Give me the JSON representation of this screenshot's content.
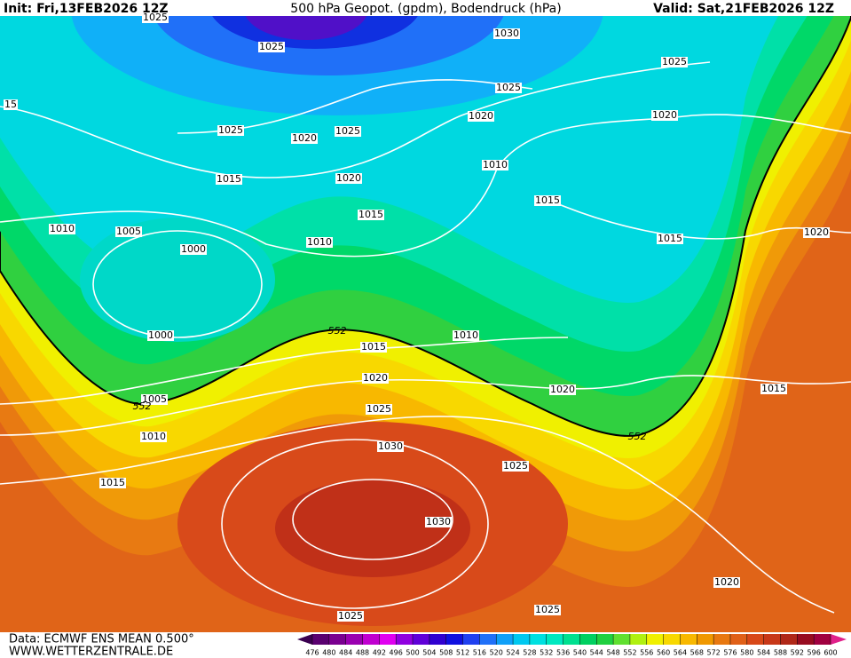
{
  "header": {
    "init": "Init: Fri,13FEB2026 12Z",
    "title": "500 hPa Geopot. (gpdm), Bodendruck (hPa)",
    "valid": "Valid: Sat,21FEB2026 12Z"
  },
  "isobar_labels": [
    "1025",
    "1025",
    "1030",
    "1025",
    "1025",
    "15",
    "1020",
    "1020",
    "1025",
    "1025",
    "1020",
    "1010",
    "1015",
    "1020",
    "1015",
    "1015",
    "1010",
    "1005",
    "1020",
    "1010",
    "1015",
    "1000",
    "1010",
    "1000",
    "1015",
    "1020",
    "1020",
    "1015",
    "1005",
    "1025",
    "1010",
    "1030",
    "1025",
    "1015",
    "1030",
    "1020",
    "1025",
    "1025"
  ],
  "contour_labels": [
    "552",
    "552",
    "552"
  ],
  "colorbar": {
    "labels": [
      476,
      480,
      484,
      488,
      492,
      496,
      500,
      504,
      508,
      512,
      516,
      520,
      524,
      528,
      532,
      536,
      540,
      544,
      548,
      552,
      556,
      560,
      564,
      568,
      572,
      576,
      580,
      584,
      588,
      592,
      596,
      600
    ],
    "colors": [
      "#3a0050",
      "#5a0070",
      "#7a0090",
      "#9a00b0",
      "#c000d0",
      "#e000f0",
      "#9000e0",
      "#6000d8",
      "#3000d0",
      "#1010e0",
      "#2040f0",
      "#2070f8",
      "#10a0f8",
      "#00c8f0",
      "#00e0e0",
      "#00e8c0",
      "#00e090",
      "#00d060",
      "#20d040",
      "#60e030",
      "#b0f010",
      "#f0f000",
      "#f8d800",
      "#f8b800",
      "#f09800",
      "#e87810",
      "#e06018",
      "#d84818",
      "#c83818",
      "#b02818",
      "#980c20",
      "#a00040",
      "#e0208a"
    ]
  },
  "footer": {
    "source": "Data: ECMWF ENS MEAN 0.500°",
    "url": "WWW.WETTERZENTRALE.DE"
  }
}
